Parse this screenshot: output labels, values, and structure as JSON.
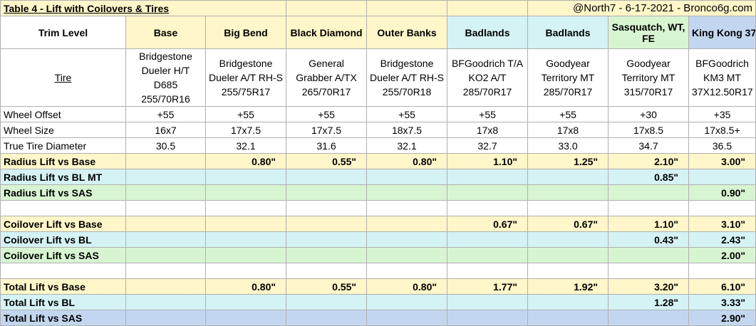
{
  "title_left": "Table 4 - Lift with Coilovers & Tires",
  "title_right": "@North7 - 6-17-2021 - Bronco6g.com",
  "trim_label": "Trim Level",
  "trims": [
    "Base",
    "Big Bend",
    "Black Diamond",
    "Outer Banks",
    "Badlands",
    "Badlands",
    "Sasquatch, WT, FE",
    "King Kong 37\""
  ],
  "tire_label": "Tire",
  "tires": [
    "Bridgestone Dueler H/T D685 255/70R16",
    "Bridgestone Dueler A/T RH-S 255/75R17",
    "General Grabber A/TX 265/70R17",
    "Bridgestone Dueler A/T RH-S 255/70R18",
    "BFGoodrich T/A KO2 A/T 285/70R17",
    "Goodyear Territory MT 285/70R17",
    "Goodyear Territory MT 315/70R17",
    "BFGoodrich KM3 MT 37X12.50R17"
  ],
  "rows": {
    "wheel_offset": {
      "label": "Wheel Offset",
      "values": [
        "+55",
        "+55",
        "+55",
        "+55",
        "+55",
        "+55",
        "+30",
        "+35"
      ]
    },
    "wheel_size": {
      "label": "Wheel Size",
      "values": [
        "16x7",
        "17x7.5",
        "17x7.5",
        "18x7.5",
        "17x8",
        "17x8",
        "17x8.5",
        "17x8.5+"
      ]
    },
    "true_tire_diameter": {
      "label": "True Tire Diameter",
      "values": [
        "30.5",
        "32.1",
        "31.6",
        "32.1",
        "32.7",
        "33.0",
        "34.7",
        "36.5"
      ]
    },
    "radius_lift_base": {
      "label": "Radius Lift vs Base",
      "values": [
        "",
        "0.80\"",
        "0.55\"",
        "0.80\"",
        "1.10\"",
        "1.25\"",
        "2.10\"",
        "3.00\""
      ]
    },
    "radius_lift_blmt": {
      "label": "Radius Lift vs BL MT",
      "values": [
        "",
        "",
        "",
        "",
        "",
        "",
        "0.85\"",
        ""
      ]
    },
    "radius_lift_sas": {
      "label": "Radius Lift vs SAS",
      "values": [
        "",
        "",
        "",
        "",
        "",
        "",
        "",
        "0.90\""
      ]
    },
    "coilover_lift_base": {
      "label": "Coilover Lift vs Base",
      "values": [
        "",
        "",
        "",
        "",
        "0.67\"",
        "0.67\"",
        "1.10\"",
        "3.10\""
      ]
    },
    "coilover_lift_bl": {
      "label": "Coilover Lift vs BL",
      "values": [
        "",
        "",
        "",
        "",
        "",
        "",
        "0.43\"",
        "2.43\""
      ]
    },
    "coilover_lift_sas": {
      "label": "Coilover Lift vs SAS",
      "values": [
        "",
        "",
        "",
        "",
        "",
        "",
        "",
        "2.00\""
      ]
    },
    "total_lift_base": {
      "label": "Total Lift vs Base",
      "values": [
        "",
        "0.80\"",
        "0.55\"",
        "0.80\"",
        "1.77\"",
        "1.92\"",
        "3.20\"",
        "6.10\""
      ]
    },
    "total_lift_bl": {
      "label": "Total Lift vs BL",
      "values": [
        "",
        "",
        "",
        "",
        "",
        "",
        "1.28\"",
        "3.33\""
      ]
    },
    "total_lift_sas": {
      "label": "Total Lift vs SAS",
      "values": [
        "",
        "",
        "",
        "",
        "",
        "",
        "",
        "2.90\""
      ]
    }
  },
  "colors": {
    "yellow": "#fff6c9",
    "green": "#d8f5d2",
    "teal": "#d5f2f5",
    "blue": "#c2d7ef"
  }
}
